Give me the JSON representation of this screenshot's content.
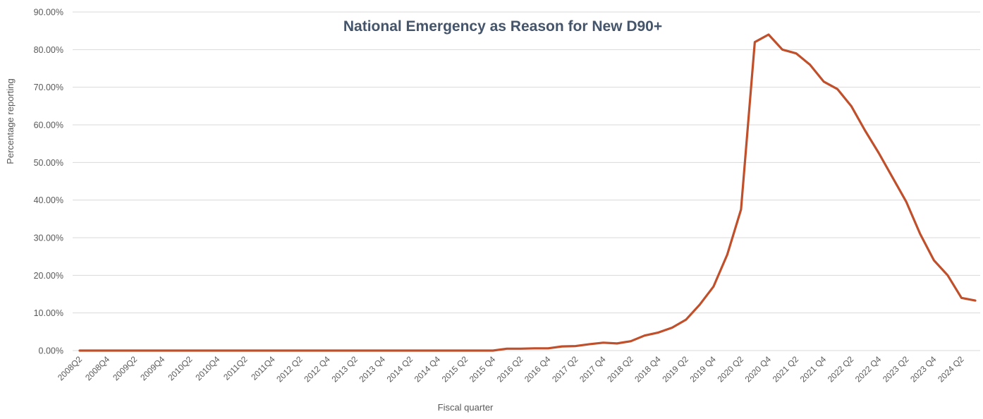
{
  "chart_data": {
    "type": "line",
    "title": "National Emergency as Reason for New D90+",
    "xlabel": "Fiscal quarter",
    "ylabel": "Percentage reporting",
    "ylim": [
      0,
      90
    ],
    "y_ticks": [
      "0.00%",
      "10.00%",
      "20.00%",
      "30.00%",
      "40.00%",
      "50.00%",
      "60.00%",
      "70.00%",
      "80.00%",
      "90.00%"
    ],
    "grid": true,
    "x_tick_labels": [
      "2008Q2",
      "2008Q4",
      "2009Q2",
      "2009Q4",
      "2010Q2",
      "2010Q4",
      "2011Q2",
      "2011Q4",
      "2012 Q2",
      "2012 Q4",
      "2013 Q2",
      "2013 Q4",
      "2014 Q2",
      "2014 Q4",
      "2015 Q2",
      "2015 Q4",
      "2016 Q2",
      "2016 Q4",
      "2017 Q2",
      "2017 Q4",
      "2018 Q2",
      "2018 Q4",
      "2019 Q2",
      "2019 Q4",
      "2020 Q2",
      "2020 Q4",
      "2021 Q2",
      "2021 Q4",
      "2022 Q2",
      "2022 Q4",
      "2023 Q2",
      "2023 Q4",
      "2024 Q2"
    ],
    "series": [
      {
        "color": "#c0502b",
        "values": [
          0,
          0,
          0,
          0,
          0,
          0,
          0,
          0,
          0,
          0,
          0,
          0,
          0,
          0,
          0,
          0,
          0,
          0,
          0,
          0,
          0,
          0,
          0,
          0,
          0,
          0,
          0,
          0,
          0,
          0,
          0,
          0.5,
          0.5,
          0.6,
          0.6,
          1.1,
          1.2,
          1.7,
          2.1,
          1.9,
          2.5,
          4.0,
          4.8,
          6.1,
          8.2,
          12.2,
          17.0,
          25.5,
          37.5,
          82.0,
          84.0,
          80.0,
          79.0,
          76.0,
          71.5,
          69.5,
          65.0,
          58.5,
          52.5,
          46.0,
          39.5,
          31.0,
          24.0,
          20.0,
          14.0,
          13.3
        ]
      }
    ]
  }
}
